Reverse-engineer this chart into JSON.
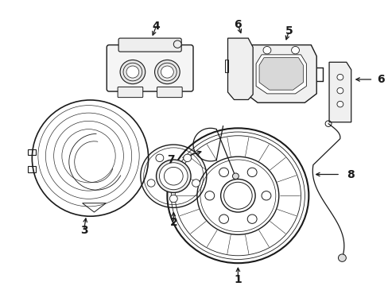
{
  "background_color": "#ffffff",
  "line_color": "#1a1a1a",
  "line_width": 0.9,
  "label_fontsize": 9,
  "fig_width": 4.89,
  "fig_height": 3.6,
  "dpi": 100
}
